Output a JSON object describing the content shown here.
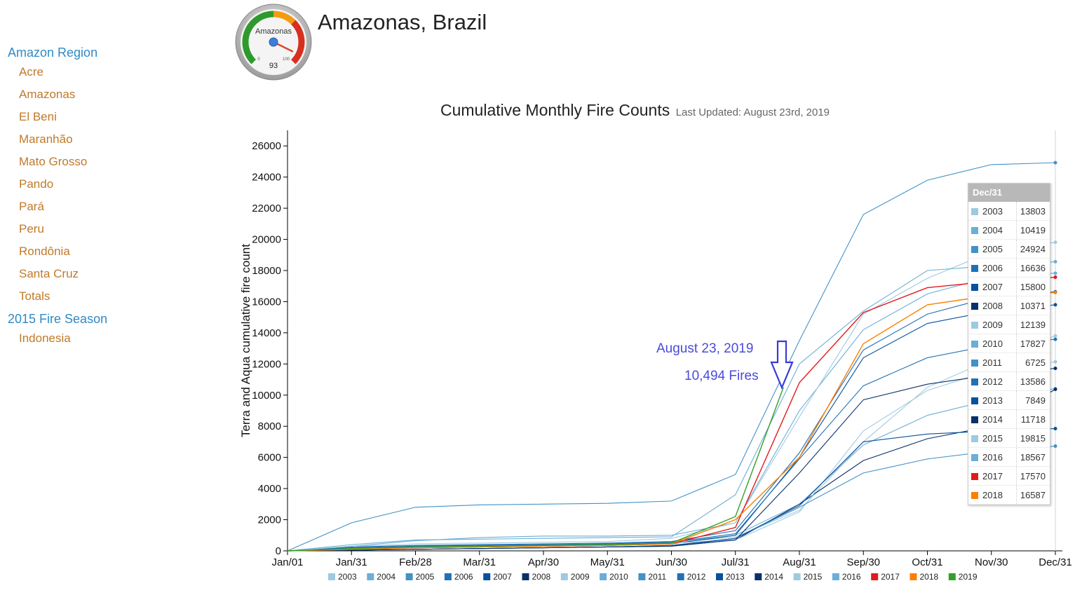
{
  "sidebar": {
    "sections": [
      {
        "heading": "Amazon Region",
        "items": [
          "Acre",
          "Amazonas",
          "El Beni",
          "Maranhão",
          "Mato Grosso",
          "Pando",
          "Pará",
          "Peru",
          "Rondônia",
          "Santa Cruz",
          "Totals"
        ]
      },
      {
        "heading": "2015 Fire Season",
        "items": [
          "Indonesia"
        ]
      }
    ]
  },
  "gauge": {
    "label": "Amazonas",
    "value": 93,
    "min_label": "0",
    "max_label": "100",
    "value_label": "93"
  },
  "header": {
    "title": "Amazonas, Brazil"
  },
  "annotation": {
    "date": "August 23, 2019",
    "fires": "10,494 Fires"
  },
  "tooltip": {
    "header": "Dec/31",
    "rows": [
      {
        "year": "2003",
        "value": "13803"
      },
      {
        "year": "2004",
        "value": "10419"
      },
      {
        "year": "2005",
        "value": "24924"
      },
      {
        "year": "2006",
        "value": "16636"
      },
      {
        "year": "2007",
        "value": "15800"
      },
      {
        "year": "2008",
        "value": "10371"
      },
      {
        "year": "2009",
        "value": "12139"
      },
      {
        "year": "2010",
        "value": "17827"
      },
      {
        "year": "2011",
        "value": "6725"
      },
      {
        "year": "2012",
        "value": "13586"
      },
      {
        "year": "2013",
        "value": "7849"
      },
      {
        "year": "2014",
        "value": "11718"
      },
      {
        "year": "2015",
        "value": "19815"
      },
      {
        "year": "2016",
        "value": "18567"
      },
      {
        "year": "2017",
        "value": "17570"
      },
      {
        "year": "2018",
        "value": "16587"
      }
    ]
  },
  "chart_data": {
    "type": "line",
    "title": "Cumulative Monthly Fire Counts",
    "subtitle": "Last Updated: August 23rd, 2019",
    "ylabel": "Terra and Aqua cumulative fire count",
    "xlabel": "",
    "x": [
      "Jan/01",
      "Jan/31",
      "Feb/28",
      "Mar/31",
      "Apr/30",
      "May/31",
      "Jun/30",
      "Jul/31",
      "Aug/31",
      "Sep/30",
      "Oct/31",
      "Nov/30",
      "Dec/31"
    ],
    "ylim": [
      0,
      27000
    ],
    "yticks": [
      0,
      2000,
      4000,
      6000,
      8000,
      10000,
      12000,
      14000,
      16000,
      18000,
      20000,
      22000,
      24000,
      26000
    ],
    "series": [
      {
        "name": "2003",
        "color": "#9ecae1",
        "values": [
          0,
          150,
          250,
          300,
          350,
          400,
          500,
          900,
          2600,
          7000,
          10500,
          12300,
          13803
        ]
      },
      {
        "name": "2004",
        "color": "#6baed6",
        "values": [
          0,
          200,
          300,
          350,
          400,
          450,
          550,
          1000,
          3000,
          6800,
          8700,
          9700,
          10419
        ]
      },
      {
        "name": "2005",
        "color": "#4292c6",
        "values": [
          0,
          1800,
          2800,
          2950,
          3000,
          3050,
          3200,
          4900,
          13500,
          21600,
          23800,
          24800,
          24924
        ]
      },
      {
        "name": "2006",
        "color": "#2171b5",
        "values": [
          0,
          250,
          350,
          400,
          450,
          500,
          600,
          1300,
          6300,
          12900,
          15200,
          16300,
          16636
        ]
      },
      {
        "name": "2007",
        "color": "#08519c",
        "values": [
          0,
          100,
          200,
          250,
          300,
          350,
          450,
          1000,
          6000,
          12400,
          14600,
          15400,
          15800
        ]
      },
      {
        "name": "2008",
        "color": "#08306b",
        "values": [
          0,
          50,
          100,
          150,
          200,
          250,
          300,
          700,
          3000,
          5800,
          7200,
          8000,
          10371
        ]
      },
      {
        "name": "2009",
        "color": "#9ecae1",
        "values": [
          0,
          150,
          250,
          300,
          350,
          400,
          500,
          700,
          2500,
          7700,
          10300,
          11600,
          12139
        ]
      },
      {
        "name": "2010",
        "color": "#6baed6",
        "values": [
          0,
          300,
          650,
          850,
          950,
          950,
          1000,
          1800,
          9000,
          14200,
          16500,
          17600,
          17827
        ]
      },
      {
        "name": "2011",
        "color": "#4292c6",
        "values": [
          0,
          50,
          100,
          150,
          200,
          250,
          300,
          800,
          2800,
          5000,
          5900,
          6400,
          6725
        ]
      },
      {
        "name": "2012",
        "color": "#2171b5",
        "values": [
          0,
          200,
          300,
          350,
          400,
          450,
          550,
          1100,
          5900,
          10600,
          12400,
          13200,
          13586
        ]
      },
      {
        "name": "2013",
        "color": "#08519c",
        "values": [
          0,
          50,
          100,
          150,
          200,
          250,
          350,
          800,
          2900,
          7000,
          7500,
          7700,
          7849
        ]
      },
      {
        "name": "2014",
        "color": "#08306b",
        "values": [
          0,
          50,
          100,
          150,
          200,
          250,
          300,
          700,
          5000,
          9700,
          10700,
          11300,
          11718
        ]
      },
      {
        "name": "2015",
        "color": "#9ecae1",
        "values": [
          0,
          300,
          450,
          500,
          550,
          600,
          800,
          1800,
          8600,
          15200,
          17500,
          19200,
          19815
        ]
      },
      {
        "name": "2016",
        "color": "#6baed6",
        "values": [
          0,
          400,
          700,
          750,
          800,
          850,
          900,
          3600,
          12000,
          15400,
          18000,
          18300,
          18567
        ]
      },
      {
        "name": "2017",
        "color": "#e31a1c",
        "values": [
          0,
          100,
          200,
          250,
          300,
          350,
          450,
          1500,
          10800,
          15300,
          16900,
          17300,
          17570
        ]
      },
      {
        "name": "2018",
        "color": "#ff7f00",
        "values": [
          0,
          100,
          200,
          250,
          300,
          350,
          450,
          2000,
          6000,
          13300,
          15800,
          16400,
          16587
        ]
      },
      {
        "name": "2019",
        "color": "#33a02c",
        "values": [
          0,
          150,
          250,
          300,
          350,
          400,
          500,
          2200,
          null,
          null,
          null,
          null,
          null
        ],
        "last_point": {
          "x_index": 7.75,
          "value": 10494
        }
      }
    ],
    "legend_position": "bottom",
    "grid": false
  }
}
